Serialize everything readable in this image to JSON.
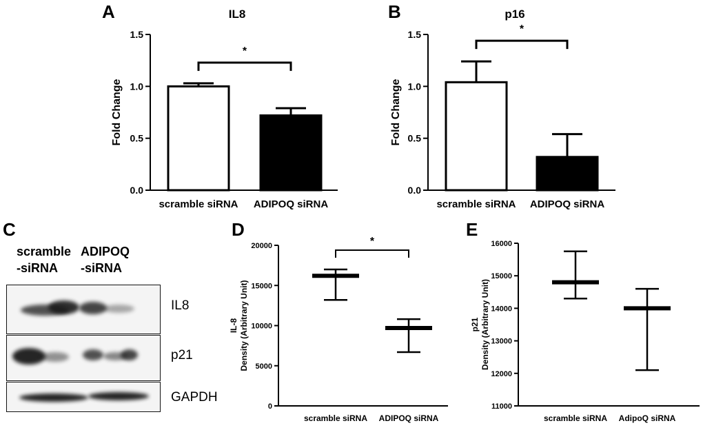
{
  "panels": {
    "A": {
      "letter": "A"
    },
    "B": {
      "letter": "B"
    },
    "C": {
      "letter": "C"
    },
    "D": {
      "letter": "D"
    },
    "E": {
      "letter": "E"
    }
  },
  "blot": {
    "lane_headers": [
      {
        "line1": "scramble",
        "line2": "-siRNA"
      },
      {
        "line1": "ADIPOQ",
        "line2": "-siRNA"
      }
    ],
    "rows": [
      "IL8",
      "p21",
      "GAPDH"
    ]
  },
  "chart_data": [
    {
      "type": "bar",
      "title": "IL8",
      "ylabel": "Fold Change",
      "xlabel": "",
      "categories": [
        "scramble siRNA",
        "ADIPOQ siRNA"
      ],
      "values": [
        1.0,
        0.72
      ],
      "error_upper": [
        1.03,
        0.79
      ],
      "bar_fill": [
        "#ffffff",
        "#000000"
      ],
      "ylim": [
        0,
        1.5
      ],
      "yticks": [
        "0.0",
        "0.5",
        "1.0",
        "1.5"
      ],
      "significance": "*"
    },
    {
      "type": "bar",
      "title": "p16",
      "ylabel": "Fold Change",
      "xlabel": "",
      "categories": [
        "scramble siRNA",
        "ADIPOQ siRNA"
      ],
      "values": [
        1.04,
        0.32
      ],
      "error_upper": [
        1.24,
        0.54
      ],
      "bar_fill": [
        "#ffffff",
        "#000000"
      ],
      "ylim": [
        0,
        1.5
      ],
      "yticks": [
        "0.0",
        "0.5",
        "1.0",
        "1.5"
      ],
      "significance": "*"
    },
    {
      "type": "box",
      "title": "",
      "ylabel_line1": "IL-8",
      "ylabel_line2": "Density (Arbitrary  Unit)",
      "categories": [
        "scramble siRNA",
        "ADIPOQ siRNA"
      ],
      "median": [
        16200,
        9700
      ],
      "min": [
        13200,
        6700
      ],
      "max": [
        17000,
        10800
      ],
      "ylim": [
        0,
        20000
      ],
      "yticks": [
        "0",
        "5000",
        "10000",
        "15000",
        "20000"
      ],
      "significance": "*"
    },
    {
      "type": "box",
      "title": "",
      "ylabel_line1": "p21",
      "ylabel_line2": "Density (Arbitrary  Unit)",
      "categories": [
        "scramble siRNA",
        "AdipoQ siRNA"
      ],
      "median": [
        14800,
        14000
      ],
      "min": [
        14300,
        12100
      ],
      "max": [
        15750,
        14600
      ],
      "ylim": [
        11000,
        16000
      ],
      "yticks": [
        "11000",
        "12000",
        "13000",
        "14000",
        "15000",
        "16000"
      ],
      "significance": ""
    }
  ]
}
